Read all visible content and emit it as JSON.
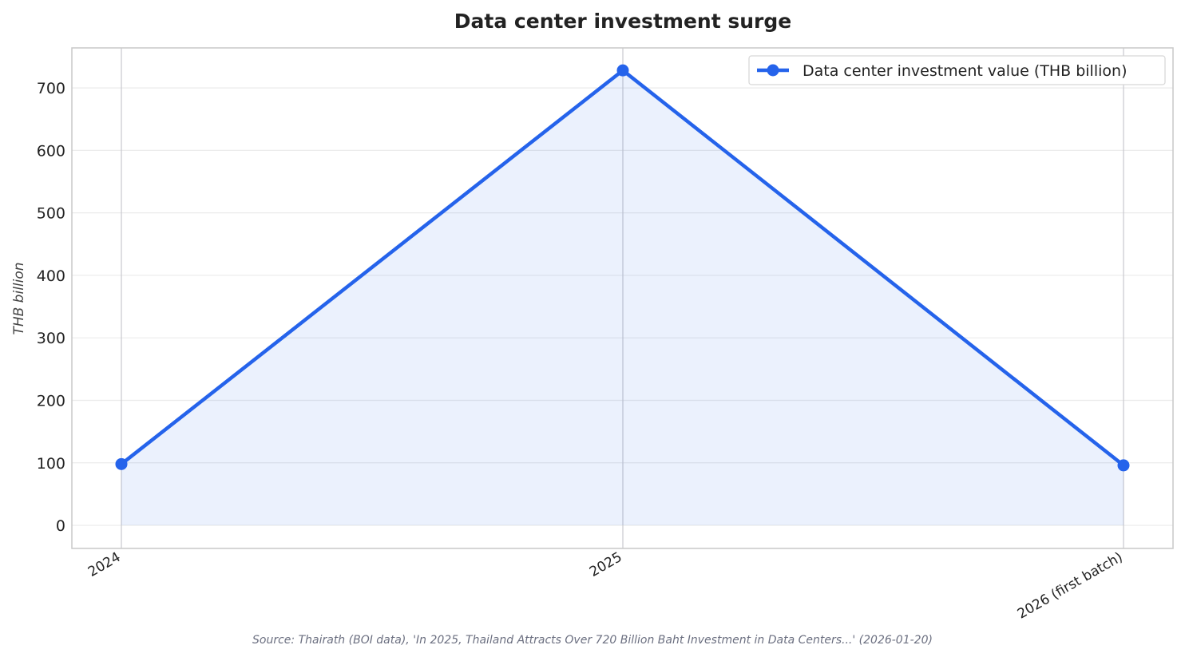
{
  "chart_data": {
    "type": "line",
    "title": "Data center investment surge",
    "xlabel": "",
    "ylabel": "THB billion",
    "categories": [
      "2024",
      "2025",
      "2026 (first batch)"
    ],
    "series": [
      {
        "name": "Data center investment value (THB billion)",
        "values": [
          98,
          728,
          96
        ],
        "color": "#2563eb"
      }
    ],
    "ylim": [
      -37,
      764
    ],
    "yticks": [
      0,
      100,
      200,
      300,
      400,
      500,
      600,
      700
    ],
    "area_fill": true,
    "grid": true,
    "legend_position": "top-right",
    "source": "Source: Thairath (BOI data), 'In 2025, Thailand Attracts Over 720 Billion Baht Investment in Data Centers...' (2026-01-20)"
  }
}
